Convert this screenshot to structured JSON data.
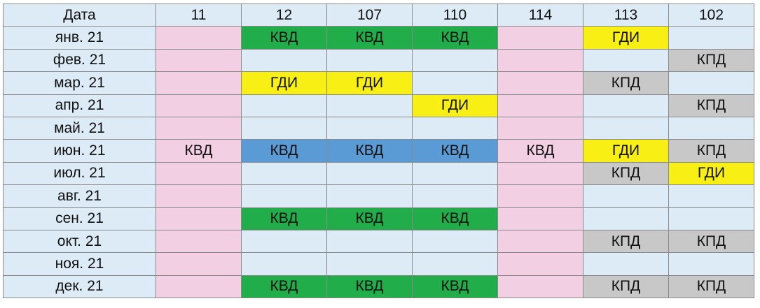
{
  "header": {
    "date_label": "Дата",
    "columns": [
      "11",
      "12",
      "107",
      "110",
      "114",
      "113",
      "102"
    ]
  },
  "colors": {
    "pink": "#f3cfe3",
    "light_blue": "#dcebf6",
    "green": "#22ad4b",
    "yellow": "#f8ef14",
    "gray": "#c8c8c8",
    "medium_blue": "#5b9bd5"
  },
  "rows": [
    {
      "date": "янв. 21",
      "cells": [
        {
          "text": "",
          "color": "pink"
        },
        {
          "text": "КВД",
          "color": "green"
        },
        {
          "text": "КВД",
          "color": "green"
        },
        {
          "text": "КВД",
          "color": "green"
        },
        {
          "text": "",
          "color": "pink"
        },
        {
          "text": "ГДИ",
          "color": "yellow"
        },
        {
          "text": "",
          "color": "blue"
        }
      ]
    },
    {
      "date": "фев. 21",
      "cells": [
        {
          "text": "",
          "color": "pink"
        },
        {
          "text": "",
          "color": "blue"
        },
        {
          "text": "",
          "color": "blue"
        },
        {
          "text": "",
          "color": "blue"
        },
        {
          "text": "",
          "color": "pink"
        },
        {
          "text": "",
          "color": "blue"
        },
        {
          "text": "КПД",
          "color": "gray"
        }
      ]
    },
    {
      "date": "мар. 21",
      "cells": [
        {
          "text": "",
          "color": "pink"
        },
        {
          "text": "ГДИ",
          "color": "yellow"
        },
        {
          "text": "ГДИ",
          "color": "yellow"
        },
        {
          "text": "",
          "color": "blue"
        },
        {
          "text": "",
          "color": "pink"
        },
        {
          "text": "КПД",
          "color": "gray"
        },
        {
          "text": "",
          "color": "blue"
        }
      ]
    },
    {
      "date": "апр. 21",
      "cells": [
        {
          "text": "",
          "color": "pink"
        },
        {
          "text": "",
          "color": "blue"
        },
        {
          "text": "",
          "color": "blue"
        },
        {
          "text": "ГДИ",
          "color": "yellow"
        },
        {
          "text": "",
          "color": "pink"
        },
        {
          "text": "",
          "color": "blue"
        },
        {
          "text": "КПД",
          "color": "gray"
        }
      ]
    },
    {
      "date": "май. 21",
      "cells": [
        {
          "text": "",
          "color": "pink"
        },
        {
          "text": "",
          "color": "blue"
        },
        {
          "text": "",
          "color": "blue"
        },
        {
          "text": "",
          "color": "blue"
        },
        {
          "text": "",
          "color": "pink"
        },
        {
          "text": "",
          "color": "blue"
        },
        {
          "text": "",
          "color": "blue"
        }
      ]
    },
    {
      "date": "июн. 21",
      "cells": [
        {
          "text": "КВД",
          "color": "pink"
        },
        {
          "text": "КВД",
          "color": "mblue"
        },
        {
          "text": "КВД",
          "color": "mblue"
        },
        {
          "text": "КВД",
          "color": "mblue"
        },
        {
          "text": "КВД",
          "color": "pink"
        },
        {
          "text": "ГДИ",
          "color": "yellow"
        },
        {
          "text": "КПД",
          "color": "gray"
        }
      ]
    },
    {
      "date": "июл. 21",
      "cells": [
        {
          "text": "",
          "color": "pink"
        },
        {
          "text": "",
          "color": "blue"
        },
        {
          "text": "",
          "color": "blue"
        },
        {
          "text": "",
          "color": "blue"
        },
        {
          "text": "",
          "color": "pink"
        },
        {
          "text": "КПД",
          "color": "gray"
        },
        {
          "text": "ГДИ",
          "color": "yellow"
        }
      ]
    },
    {
      "date": "авг. 21",
      "cells": [
        {
          "text": "",
          "color": "pink"
        },
        {
          "text": "",
          "color": "blue"
        },
        {
          "text": "",
          "color": "blue"
        },
        {
          "text": "",
          "color": "blue"
        },
        {
          "text": "",
          "color": "pink"
        },
        {
          "text": "",
          "color": "blue"
        },
        {
          "text": "",
          "color": "blue"
        }
      ]
    },
    {
      "date": "сен. 21",
      "cells": [
        {
          "text": "",
          "color": "pink"
        },
        {
          "text": "КВД",
          "color": "green"
        },
        {
          "text": "КВД",
          "color": "green"
        },
        {
          "text": "КВД",
          "color": "green"
        },
        {
          "text": "",
          "color": "pink"
        },
        {
          "text": "",
          "color": "blue"
        },
        {
          "text": "",
          "color": "blue"
        }
      ]
    },
    {
      "date": "окт. 21",
      "cells": [
        {
          "text": "",
          "color": "pink"
        },
        {
          "text": "",
          "color": "blue"
        },
        {
          "text": "",
          "color": "blue"
        },
        {
          "text": "",
          "color": "blue"
        },
        {
          "text": "",
          "color": "pink"
        },
        {
          "text": "КПД",
          "color": "gray"
        },
        {
          "text": "КПД",
          "color": "gray"
        }
      ]
    },
    {
      "date": "ноя. 21",
      "cells": [
        {
          "text": "",
          "color": "pink"
        },
        {
          "text": "",
          "color": "blue"
        },
        {
          "text": "",
          "color": "blue"
        },
        {
          "text": "",
          "color": "blue"
        },
        {
          "text": "",
          "color": "pink"
        },
        {
          "text": "",
          "color": "blue"
        },
        {
          "text": "",
          "color": "blue"
        }
      ]
    },
    {
      "date": "дек. 21",
      "cells": [
        {
          "text": "",
          "color": "pink"
        },
        {
          "text": "КВД",
          "color": "green"
        },
        {
          "text": "КВД",
          "color": "green"
        },
        {
          "text": "КВД",
          "color": "green"
        },
        {
          "text": "",
          "color": "pink"
        },
        {
          "text": "КПД",
          "color": "gray"
        },
        {
          "text": "КПД",
          "color": "gray"
        }
      ]
    }
  ]
}
